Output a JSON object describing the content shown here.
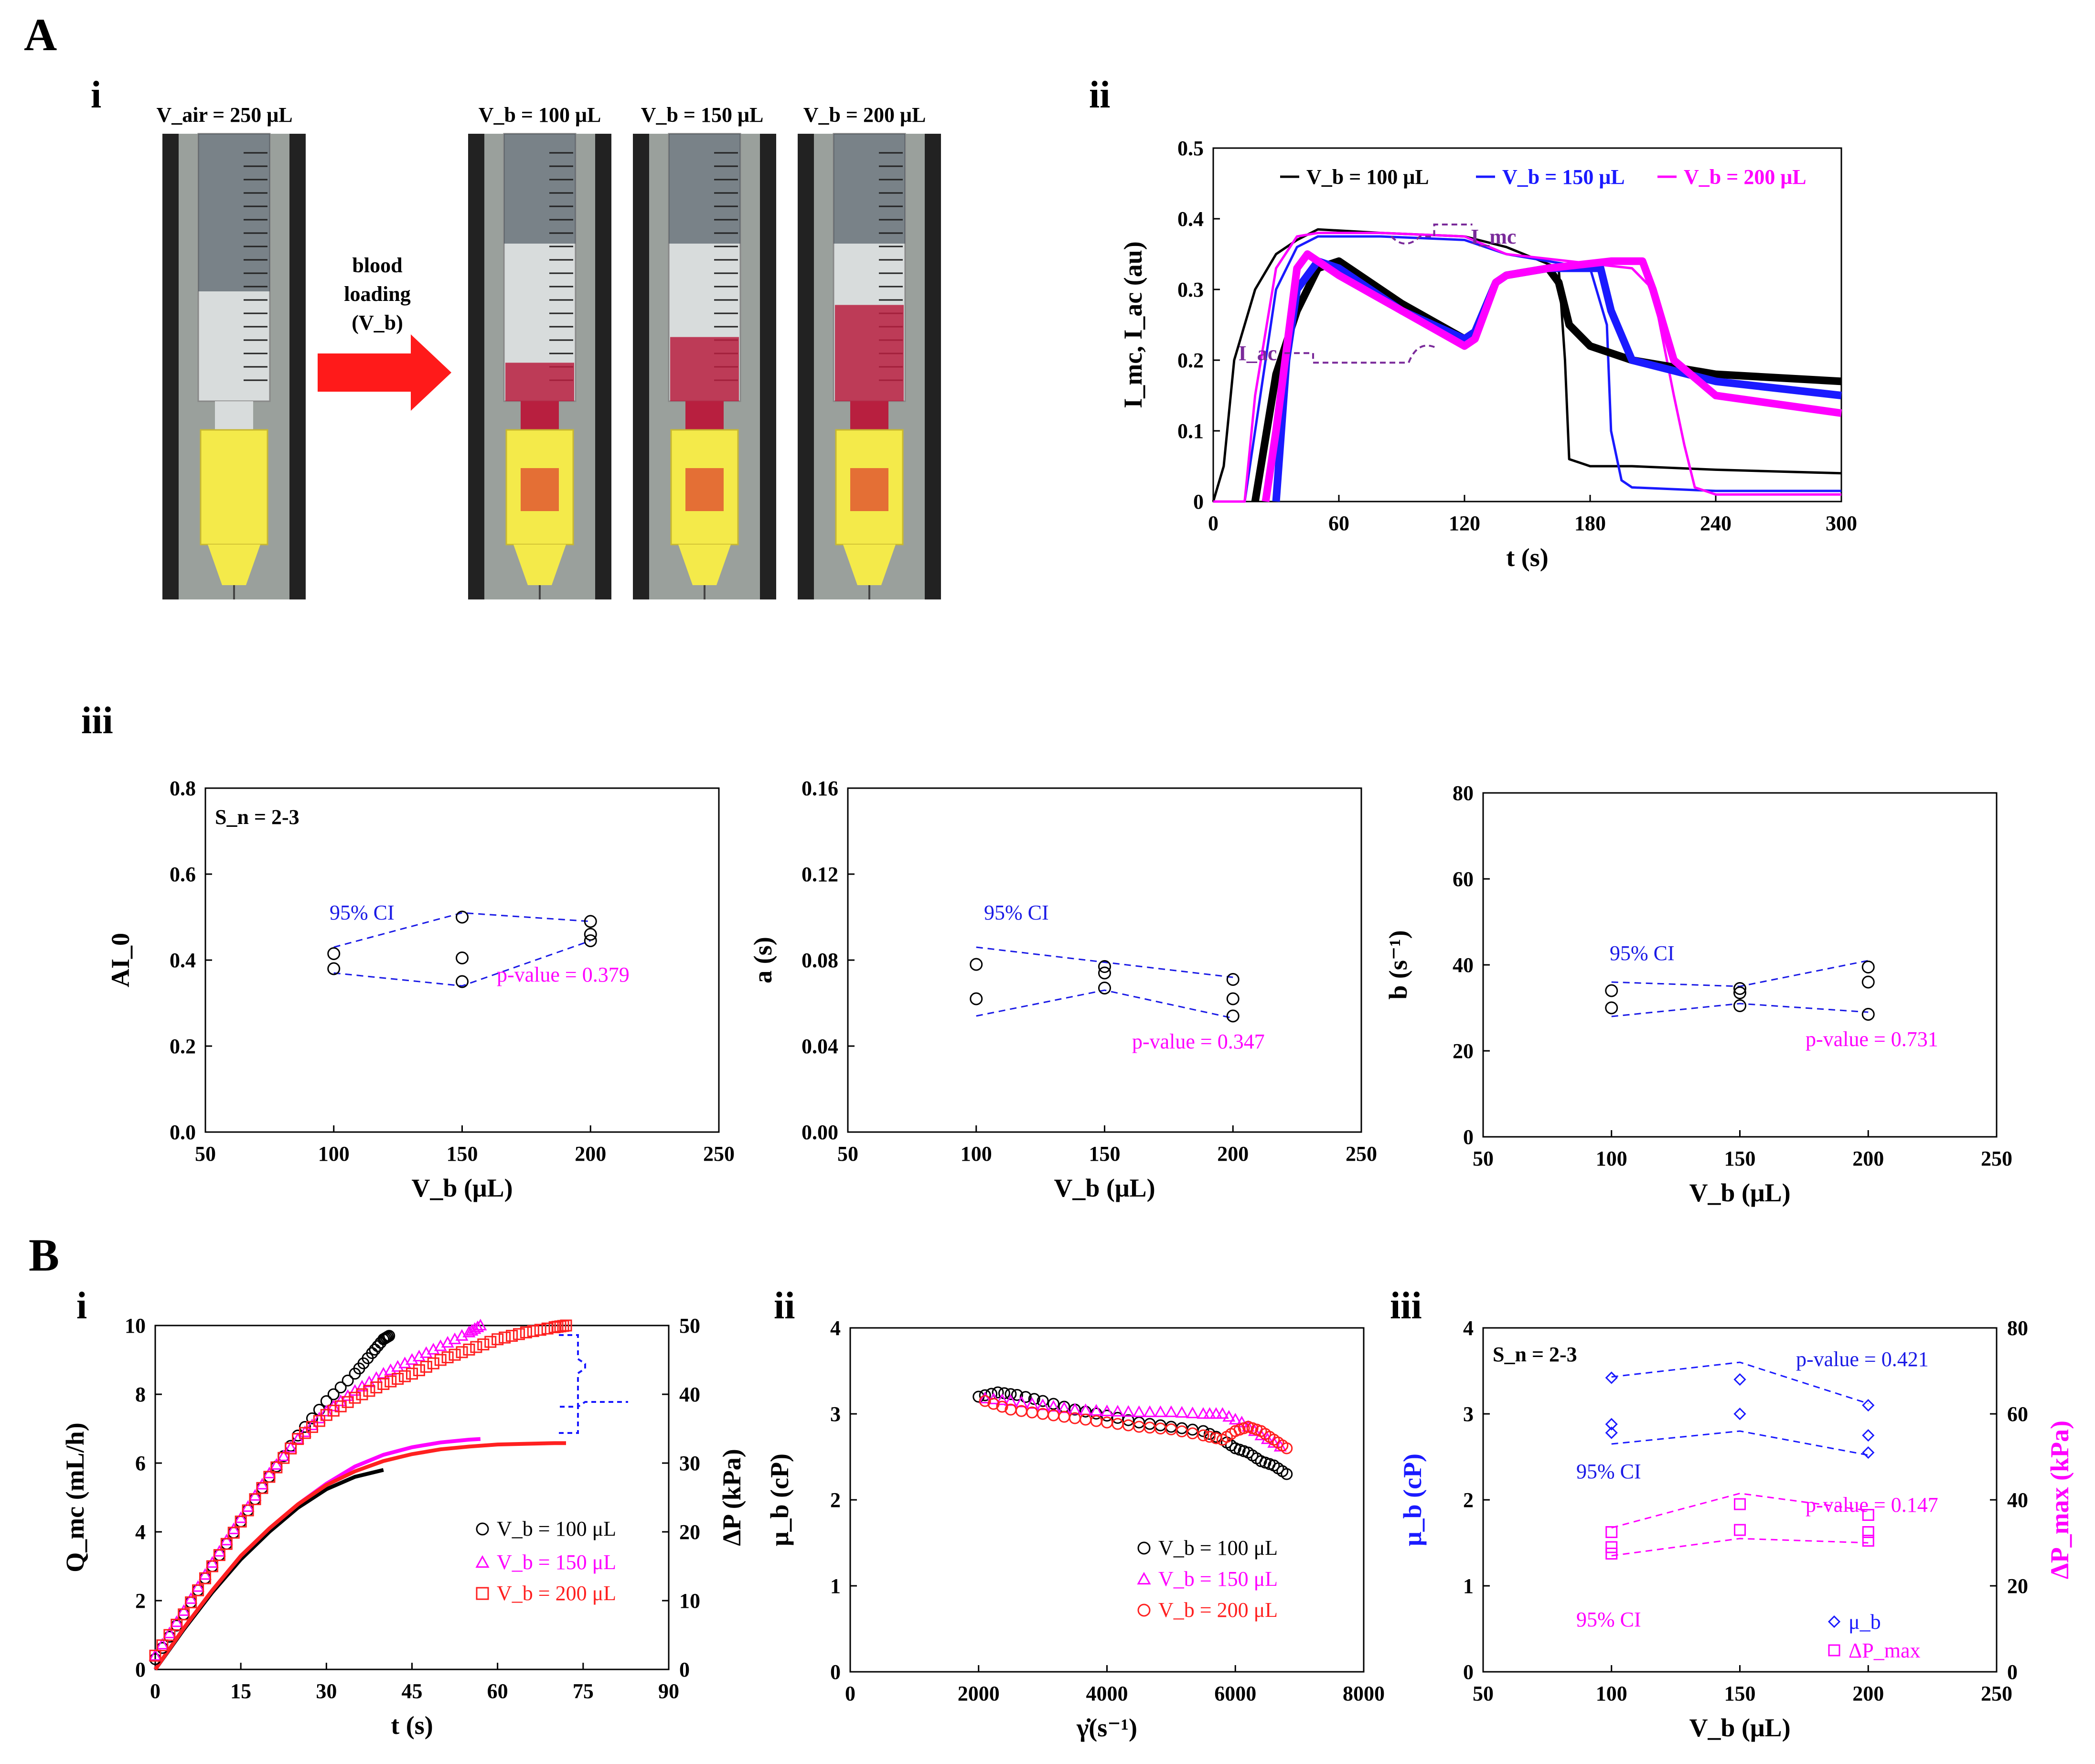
{
  "panels": {
    "A": "A",
    "A_i": "i",
    "A_ii": "ii",
    "A_iii": "iii",
    "B": "B",
    "B_i": "i",
    "B_ii": "ii",
    "B_iii": "iii"
  },
  "photos": {
    "air_label": "V_air = 250 μL",
    "arrow_text": [
      "blood",
      "loading",
      "(V_b)"
    ],
    "blood_labels": [
      "V_b = 100 μL",
      "V_b = 150 μL",
      "V_b = 200 μL"
    ],
    "colors": {
      "blood": "#b81f3f",
      "arrow": "#ff1a1a",
      "hub": "#f4ea4a"
    }
  },
  "colors": {
    "black": "#000000",
    "blue": "#1a1aff",
    "magenta": "#ff00ff",
    "red": "#ff2020",
    "purple": "#7a2a9a",
    "ci_blue": "#1a1ae6"
  },
  "chart_data": [
    {
      "id": "A_ii",
      "type": "line",
      "xlabel": "t (s)",
      "ylabel": "I_mc, I_ac (au)",
      "xlim": [
        0,
        300
      ],
      "ylim": [
        0,
        0.5
      ],
      "xticks": [
        0,
        60,
        120,
        180,
        240,
        300
      ],
      "yticks": [
        0,
        0.1,
        0.2,
        0.3,
        0.4,
        0.5
      ],
      "legend": [
        "V_b = 100 μL",
        "V_b = 150 μL",
        "V_b = 200 μL"
      ],
      "annotations": [
        "I_mc",
        "I_ac"
      ],
      "series": [
        {
          "name": "V_b = 100 μL",
          "kind": "I_mc",
          "color": "#000000",
          "x": [
            0,
            5,
            10,
            20,
            30,
            40,
            50,
            80,
            120,
            140,
            165,
            168,
            170,
            180,
            200,
            240,
            300
          ],
          "y": [
            0,
            0.05,
            0.2,
            0.3,
            0.35,
            0.37,
            0.385,
            0.38,
            0.375,
            0.36,
            0.33,
            0.2,
            0.06,
            0.05,
            0.05,
            0.045,
            0.04
          ]
        },
        {
          "name": "V_b = 150 μL",
          "kind": "I_mc",
          "color": "#1a1aff",
          "x": [
            0,
            15,
            20,
            30,
            40,
            50,
            80,
            120,
            140,
            180,
            188,
            190,
            195,
            200,
            240,
            300
          ],
          "y": [
            0,
            0,
            0.1,
            0.3,
            0.36,
            0.375,
            0.375,
            0.37,
            0.35,
            0.33,
            0.25,
            0.1,
            0.03,
            0.02,
            0.015,
            0.015
          ]
        },
        {
          "name": "V_b = 200 μL",
          "kind": "I_mc",
          "color": "#ff00ff",
          "x": [
            0,
            15,
            20,
            30,
            40,
            50,
            80,
            120,
            140,
            200,
            210,
            220,
            225,
            230,
            240,
            300
          ],
          "y": [
            0,
            0,
            0.15,
            0.33,
            0.375,
            0.38,
            0.38,
            0.375,
            0.35,
            0.33,
            0.3,
            0.15,
            0.08,
            0.02,
            0.01,
            0.01
          ]
        },
        {
          "name": "V_b = 100 μL",
          "kind": "I_ac",
          "color": "#000000",
          "x": [
            20,
            30,
            40,
            50,
            60,
            90,
            120,
            125,
            135,
            140,
            160,
            165,
            170,
            180,
            200,
            240,
            300
          ],
          "y": [
            0,
            0.18,
            0.27,
            0.33,
            0.34,
            0.28,
            0.23,
            0.24,
            0.31,
            0.32,
            0.33,
            0.31,
            0.25,
            0.22,
            0.2,
            0.18,
            0.17
          ]
        },
        {
          "name": "V_b = 150 μL",
          "kind": "I_ac",
          "color": "#1a1aff",
          "x": [
            30,
            35,
            40,
            50,
            60,
            90,
            120,
            125,
            135,
            140,
            160,
            185,
            190,
            200,
            240,
            300
          ],
          "y": [
            0,
            0.2,
            0.3,
            0.34,
            0.33,
            0.27,
            0.23,
            0.24,
            0.31,
            0.32,
            0.33,
            0.33,
            0.27,
            0.2,
            0.17,
            0.15
          ]
        },
        {
          "name": "V_b = 200 μL",
          "kind": "I_ac",
          "color": "#ff00ff",
          "x": [
            25,
            30,
            40,
            45,
            60,
            90,
            120,
            125,
            135,
            140,
            160,
            190,
            205,
            210,
            220,
            240,
            300
          ],
          "y": [
            0,
            0.1,
            0.33,
            0.35,
            0.32,
            0.27,
            0.22,
            0.23,
            0.31,
            0.32,
            0.33,
            0.34,
            0.34,
            0.3,
            0.2,
            0.15,
            0.125
          ]
        }
      ]
    },
    {
      "id": "A_iii_1",
      "type": "scatter",
      "xlabel": "V_b (μL)",
      "ylabel": "AI_0",
      "xlim": [
        50,
        250
      ],
      "ylim": [
        0,
        0.8
      ],
      "xticks": [
        50,
        100,
        150,
        200,
        250
      ],
      "yticks": [
        0.0,
        0.2,
        0.4,
        0.6,
        0.8
      ],
      "ytick_decimals": 1,
      "sn": "S_n = 2-3",
      "ci_label": "95% CI",
      "p_value": "p-value = 0.379",
      "points": {
        "x": [
          100,
          100,
          150,
          150,
          150,
          200,
          200,
          200
        ],
        "y": [
          0.415,
          0.38,
          0.5,
          0.405,
          0.35,
          0.49,
          0.46,
          0.445
        ]
      },
      "ci_upper": {
        "x": [
          100,
          150,
          200
        ],
        "y": [
          0.43,
          0.51,
          0.49
        ]
      },
      "ci_lower": {
        "x": [
          100,
          150,
          200
        ],
        "y": [
          0.37,
          0.34,
          0.445
        ]
      }
    },
    {
      "id": "A_iii_2",
      "type": "scatter",
      "xlabel": "V_b (μL)",
      "ylabel": "a (s)",
      "xlim": [
        50,
        250
      ],
      "ylim": [
        0,
        0.16
      ],
      "xticks": [
        50,
        100,
        150,
        200,
        250
      ],
      "yticks": [
        0.0,
        0.04,
        0.08,
        0.12,
        0.16
      ],
      "ytick_decimals": 2,
      "ci_label": "95% CI",
      "p_value": "p-value = 0.347",
      "points": {
        "x": [
          100,
          100,
          150,
          150,
          150,
          200,
          200,
          200
        ],
        "y": [
          0.078,
          0.062,
          0.077,
          0.074,
          0.067,
          0.071,
          0.062,
          0.054
        ]
      },
      "ci_upper": {
        "x": [
          100,
          150,
          200
        ],
        "y": [
          0.086,
          0.079,
          0.072
        ]
      },
      "ci_lower": {
        "x": [
          100,
          150,
          200
        ],
        "y": [
          0.054,
          0.066,
          0.053
        ]
      }
    },
    {
      "id": "A_iii_3",
      "type": "scatter",
      "xlabel": "V_b (μL)",
      "ylabel": "b (s⁻¹)",
      "xlim": [
        50,
        250
      ],
      "ylim": [
        0,
        80
      ],
      "xticks": [
        50,
        100,
        150,
        200,
        250
      ],
      "yticks": [
        0,
        20,
        40,
        60,
        80
      ],
      "ytick_decimals": 0,
      "ci_label": "95% CI",
      "p_value": "p-value = 0.731",
      "points": {
        "x": [
          100,
          100,
          150,
          150,
          150,
          200,
          200,
          200
        ],
        "y": [
          34,
          30,
          34.5,
          33.5,
          30.5,
          39.5,
          36,
          28.5
        ]
      },
      "ci_upper": {
        "x": [
          100,
          150,
          200
        ],
        "y": [
          36,
          35,
          41
        ]
      },
      "ci_lower": {
        "x": [
          100,
          150,
          200
        ],
        "y": [
          28,
          31,
          29
        ]
      }
    },
    {
      "id": "B_i",
      "type": "scatter",
      "xlabel": "t (s)",
      "ylabel": "Q_mc (mL/h)",
      "y2label": "ΔP (kPa)",
      "xlim": [
        0,
        90
      ],
      "ylim": [
        0,
        10
      ],
      "y2lim": [
        0,
        50
      ],
      "xticks": [
        0,
        15,
        30,
        45,
        60,
        75,
        90
      ],
      "yticks": [
        0,
        2,
        4,
        6,
        8,
        10
      ],
      "y2ticks": [
        0,
        10,
        20,
        30,
        40,
        50
      ],
      "legend": [
        "V_b = 100 μL",
        "V_b = 150 μL",
        "V_b = 200 μL"
      ],
      "series": [
        {
          "name": "V_b = 100 μL",
          "marker": "circle",
          "color": "#000000",
          "x": [
            0,
            5,
            10,
            15,
            20,
            25,
            30,
            35,
            38,
            40,
            41
          ],
          "y": [
            0.3,
            1.6,
            3.0,
            4.3,
            5.6,
            6.8,
            7.8,
            8.6,
            9.2,
            9.6,
            9.7
          ]
        },
        {
          "name": "V_b = 150 μL",
          "marker": "triangle",
          "color": "#ff00ff",
          "x": [
            0,
            5,
            10,
            15,
            20,
            25,
            30,
            35,
            40,
            45,
            50,
            55,
            57
          ],
          "y": [
            0.4,
            1.7,
            3.1,
            4.4,
            5.7,
            6.7,
            7.5,
            8.1,
            8.6,
            9.0,
            9.4,
            9.8,
            10.0
          ]
        },
        {
          "name": "V_b = 200 μL",
          "marker": "square",
          "color": "#ff2020",
          "x": [
            0,
            5,
            10,
            15,
            20,
            25,
            30,
            35,
            40,
            45,
            50,
            55,
            60,
            65,
            70,
            72
          ],
          "y": [
            0.4,
            1.6,
            3.0,
            4.3,
            5.6,
            6.7,
            7.4,
            7.9,
            8.3,
            8.6,
            9.0,
            9.3,
            9.6,
            9.8,
            9.95,
            10.0
          ]
        },
        {
          "name": "ΔP V_b = 100 μL",
          "axis": "y2",
          "color": "#000000",
          "x": [
            0,
            5,
            10,
            15,
            20,
            25,
            30,
            35,
            40
          ],
          "y": [
            0,
            5.8,
            11.2,
            16.0,
            20.0,
            23.5,
            26.2,
            28.0,
            29.0
          ]
        },
        {
          "name": "ΔP V_b = 150 μL",
          "axis": "y2",
          "color": "#ff00ff",
          "x": [
            0,
            5,
            10,
            15,
            20,
            25,
            30,
            35,
            40,
            45,
            50,
            55,
            57
          ],
          "y": [
            0,
            6.0,
            11.5,
            16.5,
            20.5,
            24.0,
            27.0,
            29.5,
            31.2,
            32.3,
            33.0,
            33.4,
            33.5
          ]
        },
        {
          "name": "ΔP V_b = 200 μL",
          "axis": "y2",
          "color": "#ff2020",
          "x": [
            0,
            5,
            10,
            15,
            20,
            25,
            30,
            35,
            40,
            45,
            50,
            55,
            60,
            65,
            70,
            72
          ],
          "y": [
            0,
            6.0,
            11.5,
            16.5,
            20.5,
            24.0,
            26.8,
            28.8,
            30.3,
            31.3,
            32.0,
            32.4,
            32.7,
            32.8,
            32.9,
            32.9
          ]
        }
      ]
    },
    {
      "id": "B_ii",
      "type": "scatter",
      "xlabel": "γ̇(s⁻¹)",
      "ylabel": "μ_b (cP)",
      "xlim": [
        0,
        8000
      ],
      "ylim": [
        0,
        4
      ],
      "xticks": [
        0,
        2000,
        4000,
        6000,
        8000
      ],
      "yticks": [
        0,
        1,
        2,
        3,
        4
      ],
      "legend": [
        "V_b = 100 μL",
        "V_b = 150 μL",
        "V_b = 200 μL"
      ],
      "series": [
        {
          "name": "V_b = 100 μL",
          "marker": "circle",
          "color": "#000000",
          "x": [
            2000,
            2300,
            2600,
            3000,
            3500,
            4000,
            4500,
            5000,
            5500,
            5800,
            6000,
            6200,
            6400,
            6600,
            6800
          ],
          "y": [
            3.2,
            3.25,
            3.22,
            3.15,
            3.05,
            2.98,
            2.9,
            2.85,
            2.8,
            2.7,
            2.6,
            2.55,
            2.45,
            2.4,
            2.3
          ]
        },
        {
          "name": "V_b = 150 μL",
          "marker": "triangle",
          "color": "#ff00ff",
          "x": [
            2100,
            2500,
            3000,
            3500,
            4000,
            4500,
            5000,
            5500,
            5800,
            6100,
            6400,
            6700
          ],
          "y": [
            3.18,
            3.15,
            3.1,
            3.05,
            3.03,
            3.02,
            3.02,
            3.0,
            3.0,
            2.9,
            2.75,
            2.62
          ]
        },
        {
          "name": "V_b = 200 μL",
          "marker": "circle",
          "color": "#ff2020",
          "x": [
            2100,
            2500,
            3000,
            3500,
            4000,
            4500,
            5000,
            5500,
            5800,
            6000,
            6200,
            6400,
            6600,
            6800
          ],
          "y": [
            3.15,
            3.05,
            3.0,
            2.95,
            2.9,
            2.85,
            2.82,
            2.75,
            2.7,
            2.8,
            2.85,
            2.8,
            2.7,
            2.6
          ]
        }
      ]
    },
    {
      "id": "B_iii",
      "type": "scatter",
      "xlabel": "V_b (μL)",
      "ylabel": "μ_b (cP)",
      "y2label": "ΔP_max (kPa)",
      "xlim": [
        50,
        250
      ],
      "ylim": [
        0,
        4
      ],
      "y2lim": [
        0,
        80
      ],
      "xticks": [
        50,
        100,
        150,
        200,
        250
      ],
      "yticks": [
        0,
        1,
        2,
        3,
        4
      ],
      "y2ticks": [
        0,
        20,
        40,
        60,
        80
      ],
      "sn": "S_n = 2-3",
      "legend": [
        "μ_b",
        "ΔP_max"
      ],
      "mu_ci_label": "95% CI",
      "mu_p_value": "p-value = 0.421",
      "dp_ci_label": "95% CI",
      "dp_p_value": "p-value = 0.147",
      "mu_points": {
        "x": [
          100,
          100,
          100,
          150,
          150,
          200,
          200,
          200
        ],
        "y": [
          3.42,
          2.88,
          2.78,
          3.4,
          3.0,
          3.1,
          2.75,
          2.55
        ]
      },
      "mu_ci_upper": {
        "x": [
          100,
          150,
          200
        ],
        "y": [
          3.43,
          3.6,
          3.12
        ]
      },
      "mu_ci_lower": {
        "x": [
          100,
          150,
          200
        ],
        "y": [
          2.65,
          2.8,
          2.52
        ]
      },
      "dp_points": {
        "x": [
          100,
          100,
          100,
          150,
          150,
          200,
          200,
          200
        ],
        "y": [
          32.5,
          29.0,
          27.5,
          39.0,
          33.0,
          36.5,
          32.5,
          30.5
        ]
      },
      "dp_ci_upper": {
        "x": [
          100,
          150,
          200
        ],
        "y": [
          33.5,
          41.5,
          37.5
        ]
      },
      "dp_ci_lower": {
        "x": [
          100,
          150,
          200
        ],
        "y": [
          27.0,
          31.0,
          30.0
        ]
      }
    }
  ]
}
